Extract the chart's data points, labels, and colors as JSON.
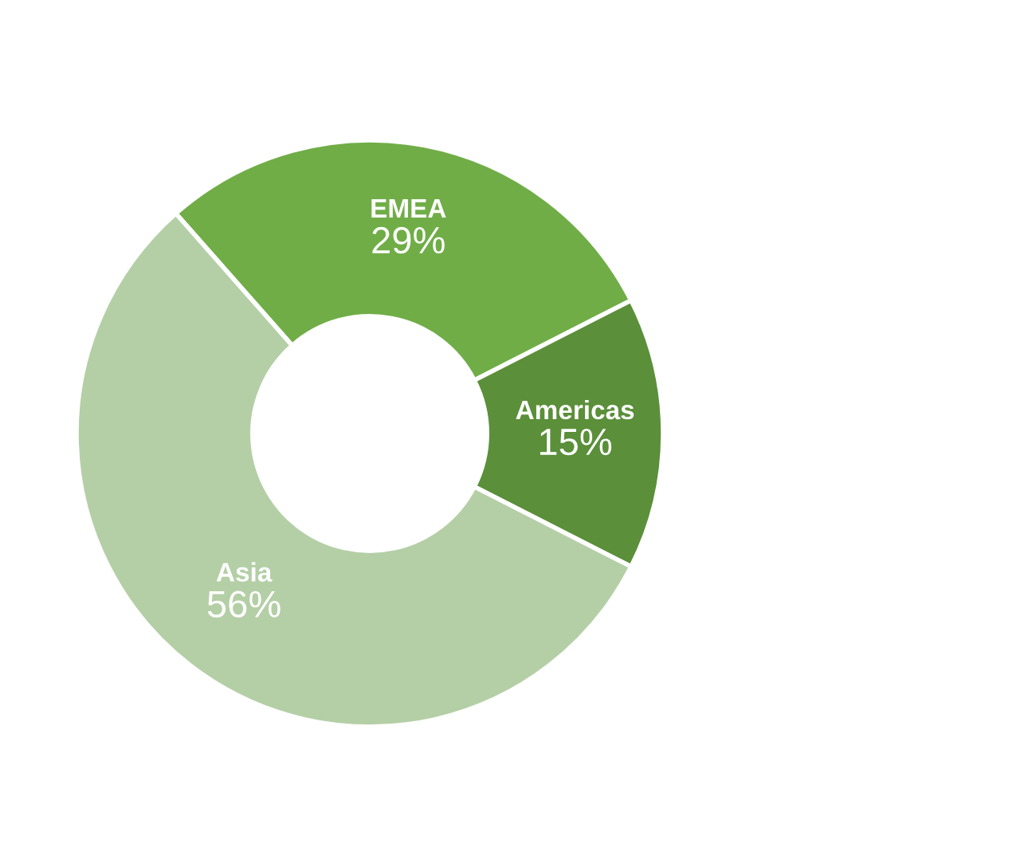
{
  "chart_data": {
    "type": "donut",
    "categories": [
      "EMEA",
      "Americas",
      "Asia"
    ],
    "values": [
      29,
      15,
      56
    ],
    "value_labels": [
      "29%",
      "15%",
      "56%"
    ],
    "colors": [
      "#70ad47",
      "#5b8f3a",
      "#b4cfa6"
    ],
    "legend": false
  }
}
